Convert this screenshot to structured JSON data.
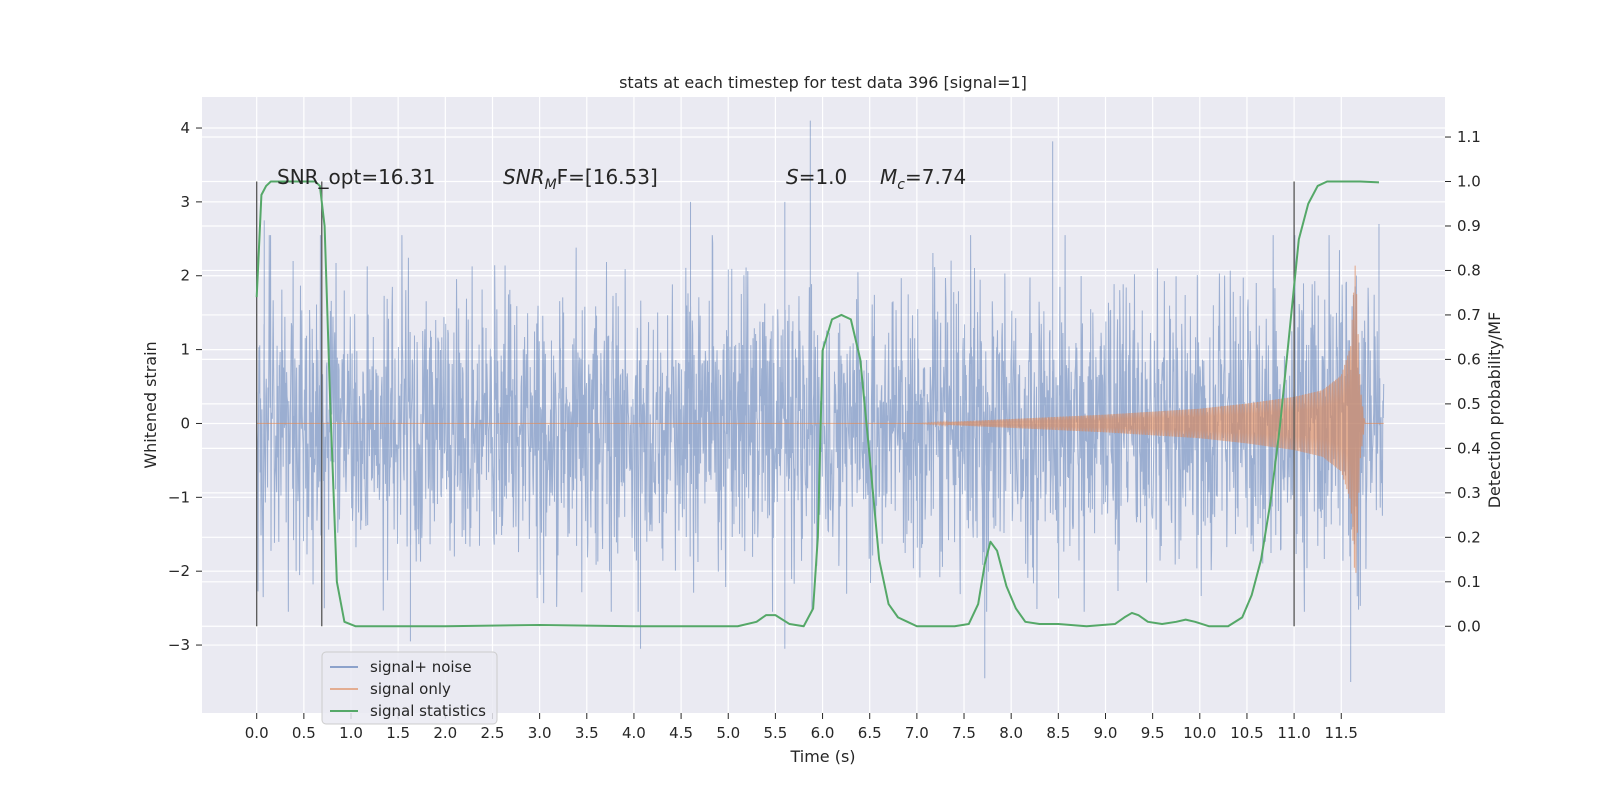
{
  "chart_data": {
    "type": "line",
    "title": "stats at each timestep for test data 396 [signal=1]",
    "xlabel": "Time (s)",
    "ylabel": "Whitened strain",
    "y2label": "Detection probability/MF",
    "xlim": [
      -0.58,
      12.6
    ],
    "ylim": [
      -3.92,
      4.42
    ],
    "y2lim": [
      -0.195,
      1.19
    ],
    "x_ticks": [
      "0.0",
      "0.5",
      "1.0",
      "1.5",
      "2.0",
      "2.5",
      "3.0",
      "3.5",
      "4.0",
      "4.5",
      "5.0",
      "5.5",
      "6.0",
      "6.5",
      "7.0",
      "7.5",
      "8.0",
      "8.5",
      "9.0",
      "9.5",
      "10.0",
      "10.5",
      "11.0",
      "11.5"
    ],
    "y_ticks": [
      "−3",
      "−2",
      "−1",
      "0",
      "1",
      "2",
      "3",
      "4"
    ],
    "y2_ticks": [
      "0.0",
      "0.1",
      "0.2",
      "0.3",
      "0.4",
      "0.5",
      "0.6",
      "0.7",
      "0.8",
      "0.9",
      "1.0",
      "1.1"
    ],
    "grid": true,
    "legend_position": "lower-left",
    "annotations": {
      "snr_opt": "SNR_opt=16.31",
      "snr_mf_prefix": "SNR",
      "snr_mf_sub": "M",
      "snr_mf_rest": "F=[16.53]",
      "s_label": "S",
      "s_value": "=1.0",
      "mc_label": "M",
      "mc_sub": "c",
      "mc_value": "=7.74"
    },
    "vertical_markers": [
      0.0,
      0.69,
      11.0
    ],
    "series": [
      {
        "name": "signal+ noise",
        "color": "#4c72b0",
        "description_axis": "left",
        "time_range": [
          0.0,
          11.95
        ],
        "envelope_upper_typical": 1.5,
        "envelope_lower_typical": -1.5,
        "notable_peaks": [
          [
            5.87,
            4.1
          ],
          [
            8.44,
            3.82
          ],
          [
            0.08,
            2.75
          ],
          [
            11.9,
            2.7
          ],
          [
            4.6,
            3.0
          ],
          [
            5.6,
            3.0
          ],
          [
            11.6,
            -3.5
          ],
          [
            7.72,
            -3.45
          ],
          [
            4.07,
            -3.05
          ],
          [
            1.63,
            -2.95
          ],
          [
            5.6,
            -3.05
          ]
        ]
      },
      {
        "name": "signal only",
        "color": "#dd8452",
        "description_axis": "left",
        "amplitude_envelope": [
          [
            0.0,
            0.0
          ],
          [
            7.0,
            0.0
          ],
          [
            7.5,
            0.03
          ],
          [
            8.0,
            0.06
          ],
          [
            8.5,
            0.09
          ],
          [
            9.0,
            0.12
          ],
          [
            9.5,
            0.16
          ],
          [
            10.0,
            0.2
          ],
          [
            10.5,
            0.27
          ],
          [
            11.0,
            0.36
          ],
          [
            11.3,
            0.45
          ],
          [
            11.5,
            0.65
          ],
          [
            11.6,
            1.05
          ],
          [
            11.65,
            2.2
          ],
          [
            11.7,
            0.5
          ],
          [
            11.75,
            0.0
          ],
          [
            11.95,
            0.0
          ]
        ]
      },
      {
        "name": "signal statistics",
        "color": "#55a868",
        "description_axis": "right",
        "x": [
          0.0,
          0.05,
          0.1,
          0.15,
          0.25,
          0.35,
          0.45,
          0.55,
          0.62,
          0.67,
          0.72,
          0.78,
          0.85,
          0.93,
          1.05,
          2.0,
          3.0,
          4.0,
          4.5,
          5.1,
          5.3,
          5.4,
          5.5,
          5.65,
          5.8,
          5.9,
          5.95,
          6.0,
          6.1,
          6.2,
          6.3,
          6.4,
          6.5,
          6.6,
          6.7,
          6.8,
          6.9,
          7.0,
          7.2,
          7.4,
          7.55,
          7.65,
          7.72,
          7.78,
          7.85,
          7.95,
          8.05,
          8.15,
          8.3,
          8.5,
          8.8,
          9.1,
          9.2,
          9.28,
          9.35,
          9.45,
          9.6,
          9.75,
          9.85,
          9.95,
          10.1,
          10.3,
          10.45,
          10.55,
          10.65,
          10.75,
          10.85,
          10.95,
          11.05,
          11.15,
          11.25,
          11.35,
          11.5,
          11.7,
          11.9
        ],
        "values": [
          0.74,
          0.97,
          0.99,
          1.0,
          1.0,
          1.0,
          1.0,
          1.0,
          1.0,
          0.99,
          0.9,
          0.5,
          0.1,
          0.01,
          0.0,
          0.0,
          0.003,
          0.0,
          0.0,
          0.0,
          0.01,
          0.025,
          0.025,
          0.005,
          0.0,
          0.04,
          0.2,
          0.62,
          0.69,
          0.7,
          0.69,
          0.6,
          0.38,
          0.15,
          0.05,
          0.02,
          0.01,
          0.0,
          0.0,
          0.0,
          0.005,
          0.05,
          0.14,
          0.19,
          0.17,
          0.09,
          0.04,
          0.01,
          0.005,
          0.005,
          0.0,
          0.005,
          0.02,
          0.03,
          0.025,
          0.01,
          0.005,
          0.01,
          0.015,
          0.01,
          0.0,
          0.0,
          0.02,
          0.07,
          0.15,
          0.28,
          0.45,
          0.66,
          0.87,
          0.95,
          0.99,
          1.0,
          1.0,
          1.0,
          0.998
        ]
      }
    ]
  }
}
